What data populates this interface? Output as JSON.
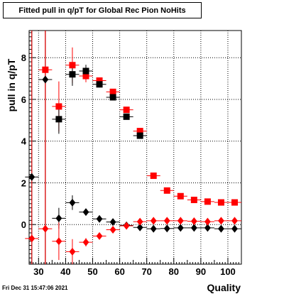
{
  "title": "Fitted pull in q/pT for Global Rec Pion NoHits",
  "timestamp": "Fri Dec 31 15:47:06 2021",
  "chart_data": {
    "type": "scatter",
    "title": "Fitted pull in q/pT for Global Rec Pion NoHits",
    "xlabel": "Quality",
    "ylabel": "pull in q/pT",
    "xlim": [
      26.5,
      105
    ],
    "ylim": [
      -1.9,
      9.3
    ],
    "x_ticks": [
      30,
      40,
      50,
      60,
      70,
      80,
      90,
      100
    ],
    "y_ticks": [
      0,
      2,
      4,
      6,
      8
    ],
    "grid": true,
    "series": [
      {
        "marker": "square",
        "color": "#ff0000",
        "points": [
          {
            "x": 32.5,
            "y": 7.42,
            "err": 12
          },
          {
            "x": 37.5,
            "y": 5.66,
            "err": 1.2
          },
          {
            "x": 42.5,
            "y": 7.64,
            "err": 0.85
          },
          {
            "x": 47.5,
            "y": 7.12,
            "err": 0.3
          },
          {
            "x": 52.5,
            "y": 6.9,
            "err": 0.15
          },
          {
            "x": 57.5,
            "y": 6.36,
            "err": 0.1
          },
          {
            "x": 62.5,
            "y": 5.5,
            "err": 0.08
          },
          {
            "x": 67.5,
            "y": 4.48,
            "err": 0.08
          },
          {
            "x": 72.5,
            "y": 2.34,
            "err": 0.05
          },
          {
            "x": 77.5,
            "y": 1.63,
            "err": 0.05
          },
          {
            "x": 82.5,
            "y": 1.36,
            "err": 0.04
          },
          {
            "x": 87.5,
            "y": 1.18,
            "err": 0.04
          },
          {
            "x": 92.5,
            "y": 1.1,
            "err": 0.04
          },
          {
            "x": 97.5,
            "y": 1.06,
            "err": 0.04
          },
          {
            "x": 102.5,
            "y": 1.06,
            "err": 0.04
          }
        ]
      },
      {
        "marker": "square",
        "color": "#000000",
        "points": [
          {
            "x": 37.5,
            "y": 5.05,
            "err": 0.7
          },
          {
            "x": 42.5,
            "y": 7.2,
            "err": 0.55
          },
          {
            "x": 47.5,
            "y": 7.36,
            "err": 0.3
          },
          {
            "x": 52.5,
            "y": 6.72,
            "err": 0.15
          },
          {
            "x": 57.5,
            "y": 6.1,
            "err": 0.1
          },
          {
            "x": 62.5,
            "y": 5.17,
            "err": 0.08
          },
          {
            "x": 67.5,
            "y": 4.26,
            "err": 0.08
          }
        ]
      },
      {
        "marker": "diamond",
        "color": "#000000",
        "points": [
          {
            "x": 27.5,
            "y": 2.28,
            "err": 12
          },
          {
            "x": 32.5,
            "y": 6.95,
            "err": 12
          },
          {
            "x": 37.5,
            "y": 0.3,
            "err": 0.5
          },
          {
            "x": 42.5,
            "y": 1.05,
            "err": 0.35
          },
          {
            "x": 47.5,
            "y": 0.6,
            "err": 0.15
          },
          {
            "x": 52.5,
            "y": 0.27,
            "err": 0.08
          },
          {
            "x": 57.5,
            "y": 0.12,
            "err": 0.05
          },
          {
            "x": 62.5,
            "y": -0.04,
            "err": 0.04
          },
          {
            "x": 67.5,
            "y": -0.14,
            "err": 0.04
          },
          {
            "x": 72.5,
            "y": -0.2,
            "err": 0.03
          },
          {
            "x": 77.5,
            "y": -0.19,
            "err": 0.03
          },
          {
            "x": 82.5,
            "y": -0.16,
            "err": 0.03
          },
          {
            "x": 87.5,
            "y": -0.16,
            "err": 0.03
          },
          {
            "x": 92.5,
            "y": -0.16,
            "err": 0.03
          },
          {
            "x": 97.5,
            "y": -0.2,
            "err": 0.03
          },
          {
            "x": 102.5,
            "y": -0.2,
            "err": 0.03
          }
        ]
      },
      {
        "marker": "diamond",
        "color": "#ff0000",
        "points": [
          {
            "x": 27.5,
            "y": -0.67,
            "err": 12
          },
          {
            "x": 32.5,
            "y": -0.2,
            "err": 12
          },
          {
            "x": 37.5,
            "y": -0.8,
            "err": 0.9
          },
          {
            "x": 42.5,
            "y": -1.3,
            "err": 0.6
          },
          {
            "x": 47.5,
            "y": -0.85,
            "err": 0.2
          },
          {
            "x": 52.5,
            "y": -0.55,
            "err": 0.1
          },
          {
            "x": 57.5,
            "y": -0.25,
            "err": 0.06
          },
          {
            "x": 62.5,
            "y": -0.06,
            "err": 0.05
          },
          {
            "x": 67.5,
            "y": 0.14,
            "err": 0.04
          },
          {
            "x": 72.5,
            "y": 0.18,
            "err": 0.04
          },
          {
            "x": 77.5,
            "y": 0.18,
            "err": 0.03
          },
          {
            "x": 82.5,
            "y": 0.18,
            "err": 0.03
          },
          {
            "x": 87.5,
            "y": 0.16,
            "err": 0.03
          },
          {
            "x": 92.5,
            "y": 0.14,
            "err": 0.03
          },
          {
            "x": 97.5,
            "y": 0.18,
            "err": 0.03
          },
          {
            "x": 102.5,
            "y": 0.18,
            "err": 0.03
          }
        ]
      }
    ]
  }
}
